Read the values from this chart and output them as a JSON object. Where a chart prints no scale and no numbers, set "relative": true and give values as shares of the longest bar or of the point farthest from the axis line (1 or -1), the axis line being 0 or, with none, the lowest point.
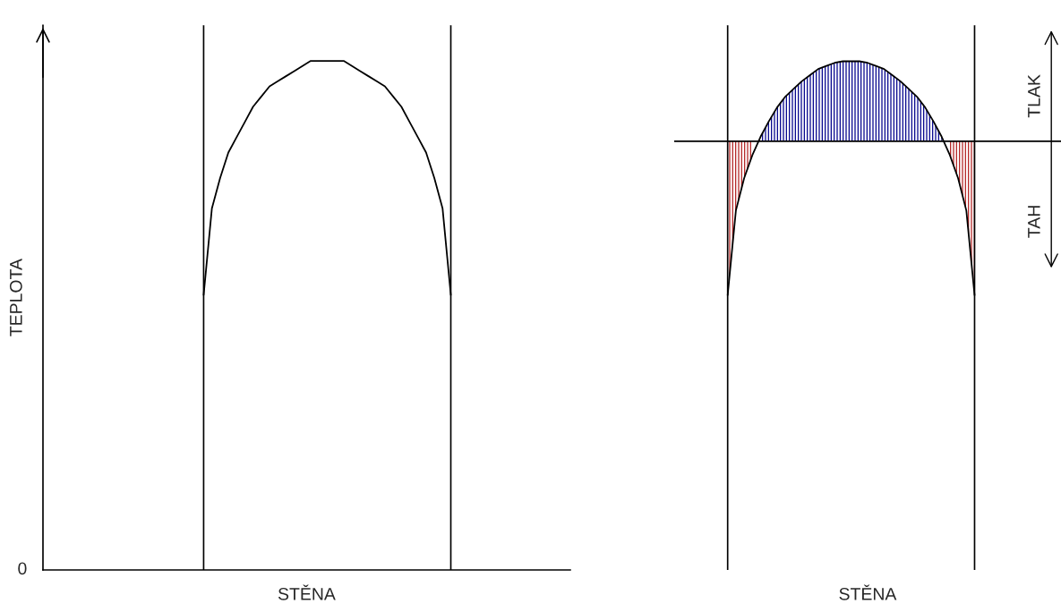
{
  "chart_data": [
    {
      "type": "line",
      "relative": true,
      "xlabel": "STĚNA",
      "ylabel": "TEPLOTA",
      "annotations": [
        "0"
      ],
      "tick_labels": false,
      "categories": [
        null,
        null,
        null,
        null,
        null,
        null,
        null,
        null,
        null,
        null,
        null,
        null,
        null,
        null,
        null,
        null,
        null,
        null,
        null,
        null,
        null,
        null,
        null,
        null,
        null,
        null,
        null,
        null,
        null,
        null,
        null,
        null,
        null,
        null,
        null,
        null,
        null,
        null,
        null,
        null,
        null,
        null,
        null,
        null,
        null,
        null,
        null,
        null,
        null,
        null,
        null,
        null,
        null,
        null,
        null,
        null,
        null,
        null,
        null,
        null,
        null,
        null,
        null,
        null
      ],
      "series": [
        {
          "color": "#000000",
          "values": [
            null,
            null,
            null,
            null,
            null,
            null,
            null,
            null,
            null,
            null,
            null,
            null,
            null,
            null,
            null,
            null,
            null,
            null,
            null,
            0.54,
            0.71,
            0.77,
            0.82,
            0.85,
            0.88,
            0.91,
            0.93,
            0.95,
            0.96,
            0.97,
            0.98,
            0.99,
            1.0,
            1.0,
            1.0,
            1.0,
            1.0,
            0.99,
            0.98,
            0.97,
            0.96,
            0.95,
            0.93,
            0.91,
            0.88,
            0.85,
            0.82,
            0.77,
            0.71,
            0.54,
            null,
            null,
            null,
            null,
            null,
            null,
            null,
            null,
            null,
            null,
            null,
            null,
            null,
            null
          ]
        }
      ]
    },
    {
      "type": "area",
      "relative": true,
      "xlabel": "STĚNA",
      "annotations": [
        "TLAK",
        "TAH"
      ],
      "tick_labels": false,
      "categories": [
        null,
        null,
        null,
        null,
        null,
        null,
        null,
        null,
        null,
        null,
        null,
        null,
        null,
        null,
        null,
        null,
        null,
        null,
        null,
        null,
        null,
        null,
        null,
        null,
        null,
        null,
        null,
        null,
        null,
        null,
        null,
        null,
        null,
        null,
        null,
        null,
        null,
        null,
        null,
        null,
        null,
        null,
        null,
        null,
        null,
        null,
        null
      ],
      "series": [
        {
          "type": "area",
          "color": "#00008b",
          "values": [
            null,
            null,
            null,
            null,
            null,
            null,
            null,
            null,
            null,
            null,
            0.03,
            0.13,
            0.22,
            0.29,
            0.34,
            0.39,
            0.43,
            0.47,
            0.49,
            0.51,
            0.52,
            0.52,
            0.52,
            0.51,
            0.49,
            0.47,
            0.43,
            0.39,
            0.34,
            0.29,
            0.22,
            0.13,
            0.03,
            null,
            null,
            null,
            null,
            null,
            null,
            null,
            null,
            null,
            null,
            null,
            null,
            null,
            null
          ]
        },
        {
          "type": "area",
          "color": "#b22222",
          "values": [
            null,
            null,
            null,
            null,
            null,
            null,
            -1,
            -0.45,
            -0.24,
            -0.09,
            null,
            null,
            null,
            null,
            null,
            null,
            null,
            null,
            null,
            null,
            null,
            null,
            null,
            null,
            null,
            null,
            null,
            null,
            null,
            null,
            null,
            null,
            null,
            -0.09,
            -0.24,
            -0.45,
            -1,
            null,
            null,
            null,
            null,
            null,
            null,
            null,
            null,
            null,
            null
          ]
        },
        {
          "type": "line",
          "color": "#000000",
          "values": [
            null,
            null,
            null,
            null,
            null,
            null,
            -1,
            -0.45,
            -0.24,
            -0.09,
            0.03,
            0.13,
            0.22,
            0.29,
            0.34,
            0.39,
            0.43,
            0.47,
            0.49,
            0.51,
            0.52,
            0.52,
            0.52,
            0.51,
            0.49,
            0.47,
            0.43,
            0.39,
            0.34,
            0.29,
            0.22,
            0.13,
            0.03,
            -0.09,
            -0.24,
            -0.45,
            -1,
            null,
            null,
            null,
            null,
            null,
            null,
            null,
            null,
            null,
            null
          ]
        }
      ]
    }
  ]
}
